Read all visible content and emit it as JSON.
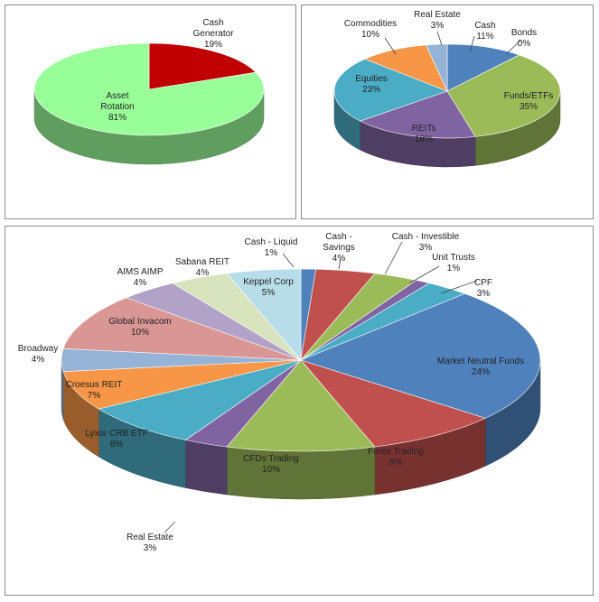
{
  "chart_data": [
    {
      "type": "pie",
      "title": "",
      "categories": [
        "Cash Generator",
        "Asset Rotation"
      ],
      "values": [
        19,
        81
      ],
      "labels": [
        [
          "Cash",
          "Generator",
          "19%"
        ],
        [
          "Asset",
          "Rotation",
          "81%"
        ]
      ],
      "colors": [
        "#c00000",
        "#99ff99"
      ],
      "legend": "none",
      "three_d": true
    },
    {
      "type": "pie",
      "title": "",
      "categories": [
        "Cash",
        "Bonds",
        "Funds/ETFs",
        "REITs",
        "Equities",
        "Commodities",
        "Real Estate"
      ],
      "values": [
        11,
        0,
        35,
        18,
        23,
        10,
        3
      ],
      "labels": [
        [
          "Cash",
          "11%"
        ],
        [
          "Bonds",
          "0%"
        ],
        [
          "Funds/ETFs",
          "35%"
        ],
        [
          "REITs",
          "18%"
        ],
        [
          "Equities",
          "23%"
        ],
        [
          "Commodities",
          "10%"
        ],
        [
          "Real Estate",
          "3%"
        ]
      ],
      "colors": [
        "#4f81bd",
        "#c0504d",
        "#9bbb59",
        "#8064a2",
        "#4bacc6",
        "#f79646",
        "#95b3d7"
      ],
      "legend": "none",
      "three_d": true
    },
    {
      "type": "pie",
      "title": "",
      "categories": [
        "Cash - Liquid",
        "Cash - Savings",
        "Cash - Investible",
        "Unit Trusts",
        "CPF",
        "Market Neutral Funds",
        "Forex Trading",
        "CFDs Trading",
        "Real Estate",
        "Lyxor CRB ETF",
        "Croesus REIT",
        "Broadway",
        "Global Invacom",
        "AIMS AIMP",
        "Sabana REIT",
        "Keppel Corp"
      ],
      "values": [
        1,
        4,
        3,
        1,
        3,
        24,
        9,
        10,
        3,
        8,
        7,
        4,
        10,
        4,
        4,
        5
      ],
      "labels": [
        [
          "Cash - Liquid",
          "1%"
        ],
        [
          "Cash -",
          "Savings",
          "4%"
        ],
        [
          "Cash - Investible",
          "3%"
        ],
        [
          "Unit Trusts",
          "1%"
        ],
        [
          "CPF",
          "3%"
        ],
        [
          "Market Neutral Funds",
          "24%"
        ],
        [
          "Forex Trading",
          "9%"
        ],
        [
          "CFDs Trading",
          "10%"
        ],
        [
          "Real Estate",
          "3%"
        ],
        [
          "Lyxor CRB ETF",
          "8%"
        ],
        [
          "Croesus REIT",
          "7%"
        ],
        [
          "Broadway",
          "4%"
        ],
        [
          "Global Invacom",
          "10%"
        ],
        [
          "AIMS AIMP",
          "4%"
        ],
        [
          "Sabana REIT",
          "4%"
        ],
        [
          "Keppel Corp",
          "5%"
        ]
      ],
      "colors": [
        "#4f81bd",
        "#c0504d",
        "#9bbb59",
        "#8064a2",
        "#4bacc6",
        "#4f81bd",
        "#c0504d",
        "#9bbb59",
        "#8064a2",
        "#4bacc6",
        "#f79646",
        "#95b3d7",
        "#da9694",
        "#b3a2c7",
        "#d7e4bd",
        "#b7dee8"
      ],
      "legend": "none",
      "three_d": true
    }
  ]
}
